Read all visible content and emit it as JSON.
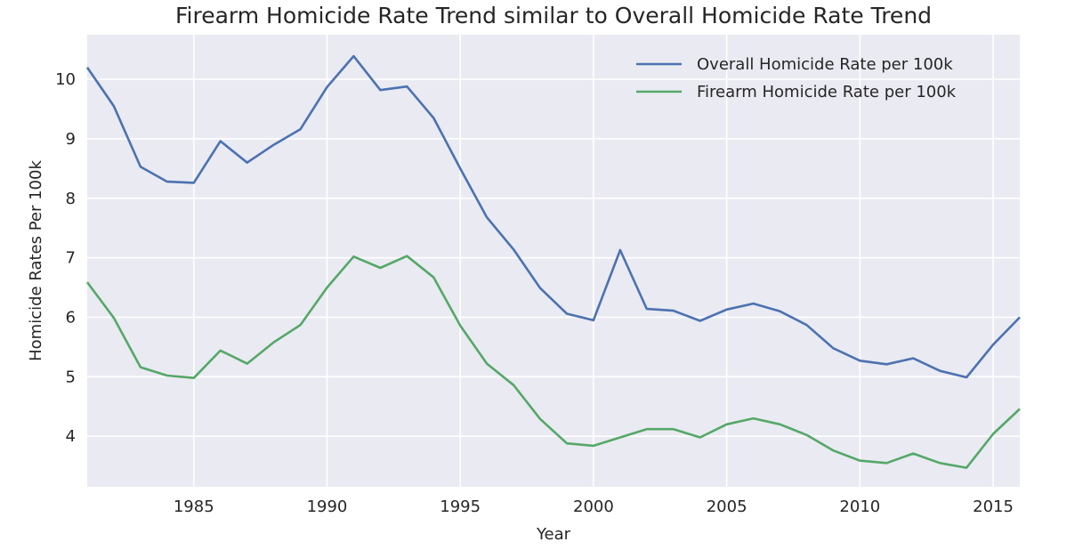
{
  "chart_data": {
    "type": "line",
    "title": "Firearm Homicide Rate Trend similar to Overall Homicide Rate Trend",
    "xlabel": "Year",
    "ylabel": "Homicide Rates Per 100k",
    "xlim": [
      1981,
      2016
    ],
    "ylim": [
      3.15,
      10.75
    ],
    "xticks": [
      1985,
      1990,
      1995,
      2000,
      2005,
      2010,
      2015
    ],
    "yticks": [
      4,
      5,
      6,
      7,
      8,
      9,
      10
    ],
    "grid": true,
    "legend_position": "upper right",
    "background": "#eaeaf2",
    "grid_color": "#ffffff",
    "x": [
      1981,
      1982,
      1983,
      1984,
      1985,
      1986,
      1987,
      1988,
      1989,
      1990,
      1991,
      1992,
      1993,
      1994,
      1995,
      1996,
      1997,
      1998,
      1999,
      2000,
      2001,
      2002,
      2003,
      2004,
      2005,
      2006,
      2007,
      2008,
      2009,
      2010,
      2011,
      2012,
      2013,
      2014,
      2015,
      2016
    ],
    "series": [
      {
        "name": "Overall Homicide Rate per 100k",
        "color": "#4c72b0",
        "values": [
          10.2,
          9.55,
          8.53,
          8.28,
          8.26,
          8.96,
          8.6,
          8.9,
          9.16,
          9.87,
          10.39,
          9.82,
          9.88,
          9.35,
          8.5,
          7.68,
          7.14,
          6.49,
          6.06,
          5.95,
          7.13,
          6.14,
          6.11,
          5.94,
          6.13,
          6.23,
          6.1,
          5.87,
          5.48,
          5.27,
          5.21,
          5.31,
          5.1,
          4.99,
          5.54,
          6.0
        ]
      },
      {
        "name": "Firearm Homicide Rate per 100k",
        "color": "#55a868",
        "values": [
          6.59,
          5.99,
          5.16,
          5.02,
          4.98,
          5.44,
          5.22,
          5.58,
          5.87,
          6.5,
          7.02,
          6.83,
          7.03,
          6.67,
          5.86,
          5.22,
          4.86,
          4.29,
          3.88,
          3.84,
          3.98,
          4.12,
          4.12,
          3.98,
          4.2,
          4.3,
          4.2,
          4.02,
          3.76,
          3.59,
          3.55,
          3.71,
          3.55,
          3.47,
          4.04,
          4.46
        ]
      }
    ]
  }
}
